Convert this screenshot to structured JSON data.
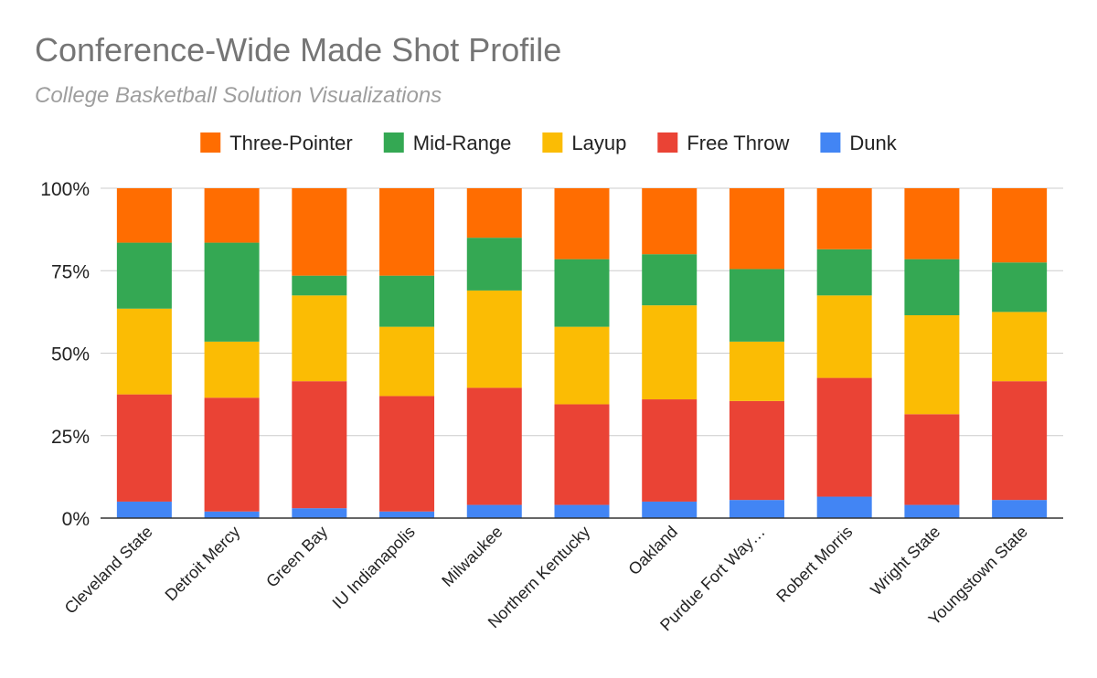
{
  "title": "Conference-Wide Made Shot Profile",
  "subtitle": "College Basketball Solution Visualizations",
  "chart_data": {
    "type": "bar",
    "stacked": true,
    "percent_stacked": true,
    "title": "Conference-Wide Made Shot Profile",
    "subtitle": "College Basketball Solution Visualizations",
    "categories": [
      "Cleveland State",
      "Detroit Mercy",
      "Green Bay",
      "IU Indianapolis",
      "Milwaukee",
      "Northern Kentucky",
      "Oakland",
      "Purdue Fort Way…",
      "Robert Morris",
      "Wright State",
      "Youngstown State"
    ],
    "series": [
      {
        "name": "Dunk",
        "color": "#4285f4",
        "values": [
          5,
          2,
          3,
          2,
          4,
          4,
          5,
          5.5,
          6.5,
          4,
          5.5
        ]
      },
      {
        "name": "Free Throw",
        "color": "#ea4335",
        "values": [
          32.5,
          34.5,
          38.5,
          35,
          35.5,
          30.5,
          31,
          30,
          36,
          27.5,
          36
        ]
      },
      {
        "name": "Layup",
        "color": "#fbbc04",
        "values": [
          26,
          17,
          26,
          21,
          29.5,
          23.5,
          28.5,
          18,
          25,
          30,
          21
        ]
      },
      {
        "name": "Mid-Range",
        "color": "#34a853",
        "values": [
          20,
          30,
          6,
          15.5,
          16,
          20.5,
          15.5,
          22,
          14,
          17,
          15
        ]
      },
      {
        "name": "Three-Pointer",
        "color": "#ff6d01",
        "values": [
          16.5,
          16.5,
          26.5,
          26.5,
          15,
          21.5,
          20,
          24.5,
          18.5,
          21.5,
          22.5
        ]
      }
    ],
    "legend_order": [
      "Three-Pointer",
      "Mid-Range",
      "Layup",
      "Free Throw",
      "Dunk"
    ],
    "y_ticks": [
      "0%",
      "25%",
      "50%",
      "75%",
      "100%"
    ],
    "ylim": [
      0,
      100
    ],
    "grid": true,
    "legend_position": "top"
  }
}
